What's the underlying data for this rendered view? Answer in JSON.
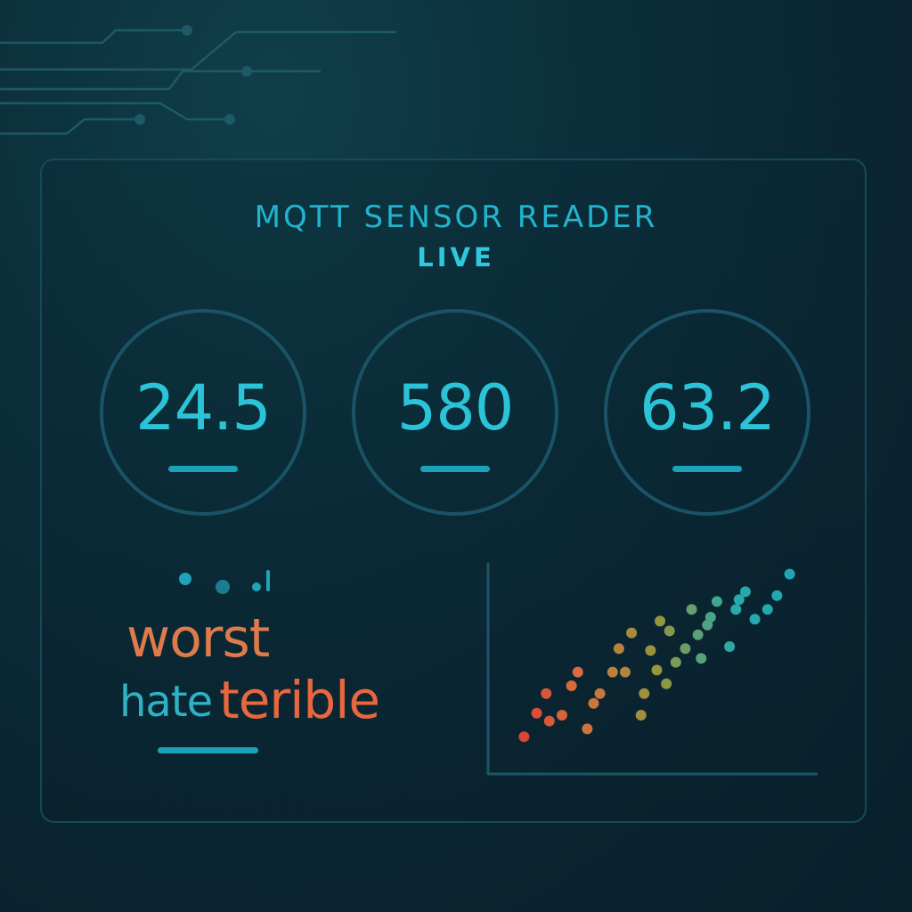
{
  "header": {
    "title": "MQTT SENSOR READER",
    "status": "LIVE"
  },
  "gauges": [
    {
      "value": "24.5"
    },
    {
      "value": "580"
    },
    {
      "value": "63.2"
    }
  ],
  "words": {
    "worst": "worst",
    "hate": "hate",
    "terible": "terible"
  },
  "colors": {
    "accent": "#2bc3d7",
    "warm": "#e8673f",
    "border": "#1a5366"
  },
  "chart_data": {
    "type": "scatter",
    "title": "",
    "xlabel": "",
    "ylabel": "",
    "xlim": [
      0,
      100
    ],
    "ylim": [
      0,
      100
    ],
    "grid": false,
    "x": [
      8,
      12,
      15,
      16,
      20,
      23,
      25,
      28,
      30,
      32,
      36,
      38,
      40,
      42,
      45,
      46,
      48,
      50,
      51,
      53,
      54,
      56,
      59,
      61,
      63,
      64,
      66,
      67,
      69,
      73,
      75,
      76,
      78,
      81,
      85,
      88,
      92
    ],
    "y": [
      14,
      26,
      36,
      22,
      25,
      40,
      47,
      18,
      31,
      36,
      47,
      59,
      47,
      67,
      25,
      36,
      58,
      48,
      73,
      41,
      68,
      52,
      59,
      79,
      66,
      54,
      71,
      75,
      83,
      60,
      79,
      84,
      88,
      74,
      79,
      86,
      97
    ]
  }
}
